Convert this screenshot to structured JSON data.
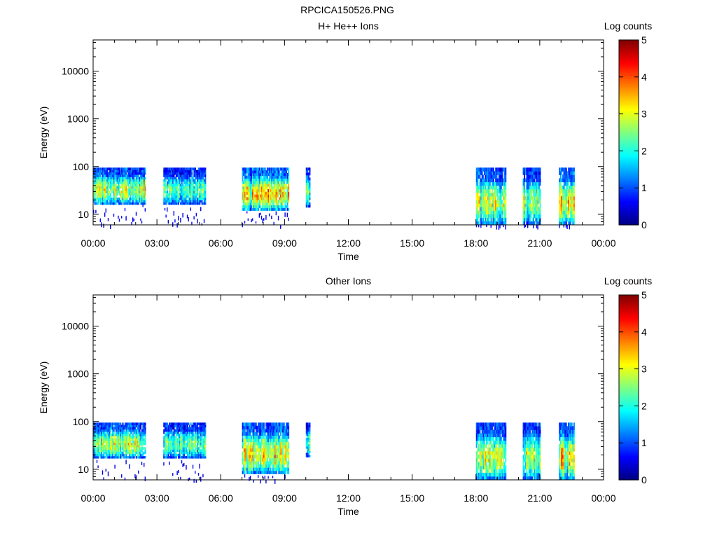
{
  "figure_title": "RPCICA150526.PNG",
  "chart_data": [
    {
      "type": "heatmap",
      "title": "H+ He++ Ions",
      "xlabel": "Time",
      "ylabel": "Energy (eV)",
      "x_ticks": [
        "00:00",
        "03:00",
        "06:00",
        "09:00",
        "12:00",
        "15:00",
        "18:00",
        "21:00",
        "00:00"
      ],
      "x_range_hours": [
        0,
        24
      ],
      "y_scale": "log",
      "y_range": [
        6,
        45000
      ],
      "y_ticks": [
        10,
        100,
        1000,
        10000
      ],
      "y_tick_labels": [
        "10",
        "100",
        "1000",
        "10000"
      ],
      "colorbar": {
        "label": "Log counts",
        "range": [
          0,
          5
        ],
        "ticks": [
          "0",
          "1",
          "2",
          "3",
          "4",
          "5"
        ]
      },
      "data_intervals": [
        {
          "start_hour": 0.0,
          "end_hour": 2.45,
          "emin": 16,
          "emax": 95,
          "peak_log": 3.5,
          "low_sparse": true
        },
        {
          "start_hour": 3.3,
          "end_hour": 5.25,
          "emin": 16,
          "emax": 95,
          "peak_log": 3.0,
          "low_sparse": true
        },
        {
          "start_hour": 7.0,
          "end_hour": 9.2,
          "emin": 12,
          "emax": 95,
          "peak_log": 4.0,
          "low_sparse": true
        },
        {
          "start_hour": 10.0,
          "end_hour": 10.2,
          "emin": 14,
          "emax": 95,
          "peak_log": 3.0,
          "low_sparse": false
        },
        {
          "start_hour": 18.0,
          "end_hour": 19.4,
          "emin": 6,
          "emax": 95,
          "peak_log": 3.5,
          "low_sparse": true
        },
        {
          "start_hour": 20.2,
          "end_hour": 21.0,
          "emin": 6,
          "emax": 95,
          "peak_log": 3.5,
          "low_sparse": true
        },
        {
          "start_hour": 21.9,
          "end_hour": 22.6,
          "emin": 6,
          "emax": 95,
          "peak_log": 4.0,
          "low_sparse": true
        }
      ]
    },
    {
      "type": "heatmap",
      "title": "Other Ions",
      "xlabel": "Time",
      "ylabel": "Energy (eV)",
      "x_ticks": [
        "00:00",
        "03:00",
        "06:00",
        "09:00",
        "12:00",
        "15:00",
        "18:00",
        "21:00",
        "00:00"
      ],
      "x_range_hours": [
        0,
        24
      ],
      "y_scale": "log",
      "y_range": [
        6,
        45000
      ],
      "y_ticks": [
        10,
        100,
        1000,
        10000
      ],
      "y_tick_labels": [
        "10",
        "100",
        "1000",
        "10000"
      ],
      "colorbar": {
        "label": "Log counts",
        "range": [
          0,
          5
        ],
        "ticks": [
          "0",
          "1",
          "2",
          "3",
          "4",
          "5"
        ]
      },
      "data_intervals": [
        {
          "start_hour": 0.0,
          "end_hour": 2.45,
          "emin": 17,
          "emax": 95,
          "peak_log": 3.5,
          "low_sparse": true
        },
        {
          "start_hour": 3.3,
          "end_hour": 5.25,
          "emin": 17,
          "emax": 95,
          "peak_log": 3.0,
          "low_sparse": true
        },
        {
          "start_hour": 7.0,
          "end_hour": 9.2,
          "emin": 8,
          "emax": 95,
          "peak_log": 4.0,
          "low_sparse": true
        },
        {
          "start_hour": 10.0,
          "end_hour": 10.2,
          "emin": 18,
          "emax": 95,
          "peak_log": 3.0,
          "low_sparse": false
        },
        {
          "start_hour": 18.0,
          "end_hour": 19.4,
          "emin": 6,
          "emax": 95,
          "peak_log": 3.5,
          "low_sparse": false
        },
        {
          "start_hour": 20.2,
          "end_hour": 21.0,
          "emin": 6,
          "emax": 95,
          "peak_log": 3.5,
          "low_sparse": false
        },
        {
          "start_hour": 21.9,
          "end_hour": 22.6,
          "emin": 6,
          "emax": 95,
          "peak_log": 4.0,
          "low_sparse": false
        }
      ]
    }
  ]
}
